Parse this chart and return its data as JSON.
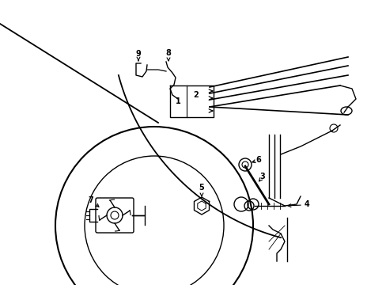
{
  "background_color": "#ffffff",
  "line_color": "#000000",
  "figsize": [
    4.89,
    3.6
  ],
  "dpi": 100,
  "xlim": [
    0,
    489
  ],
  "ylim": [
    0,
    360
  ]
}
